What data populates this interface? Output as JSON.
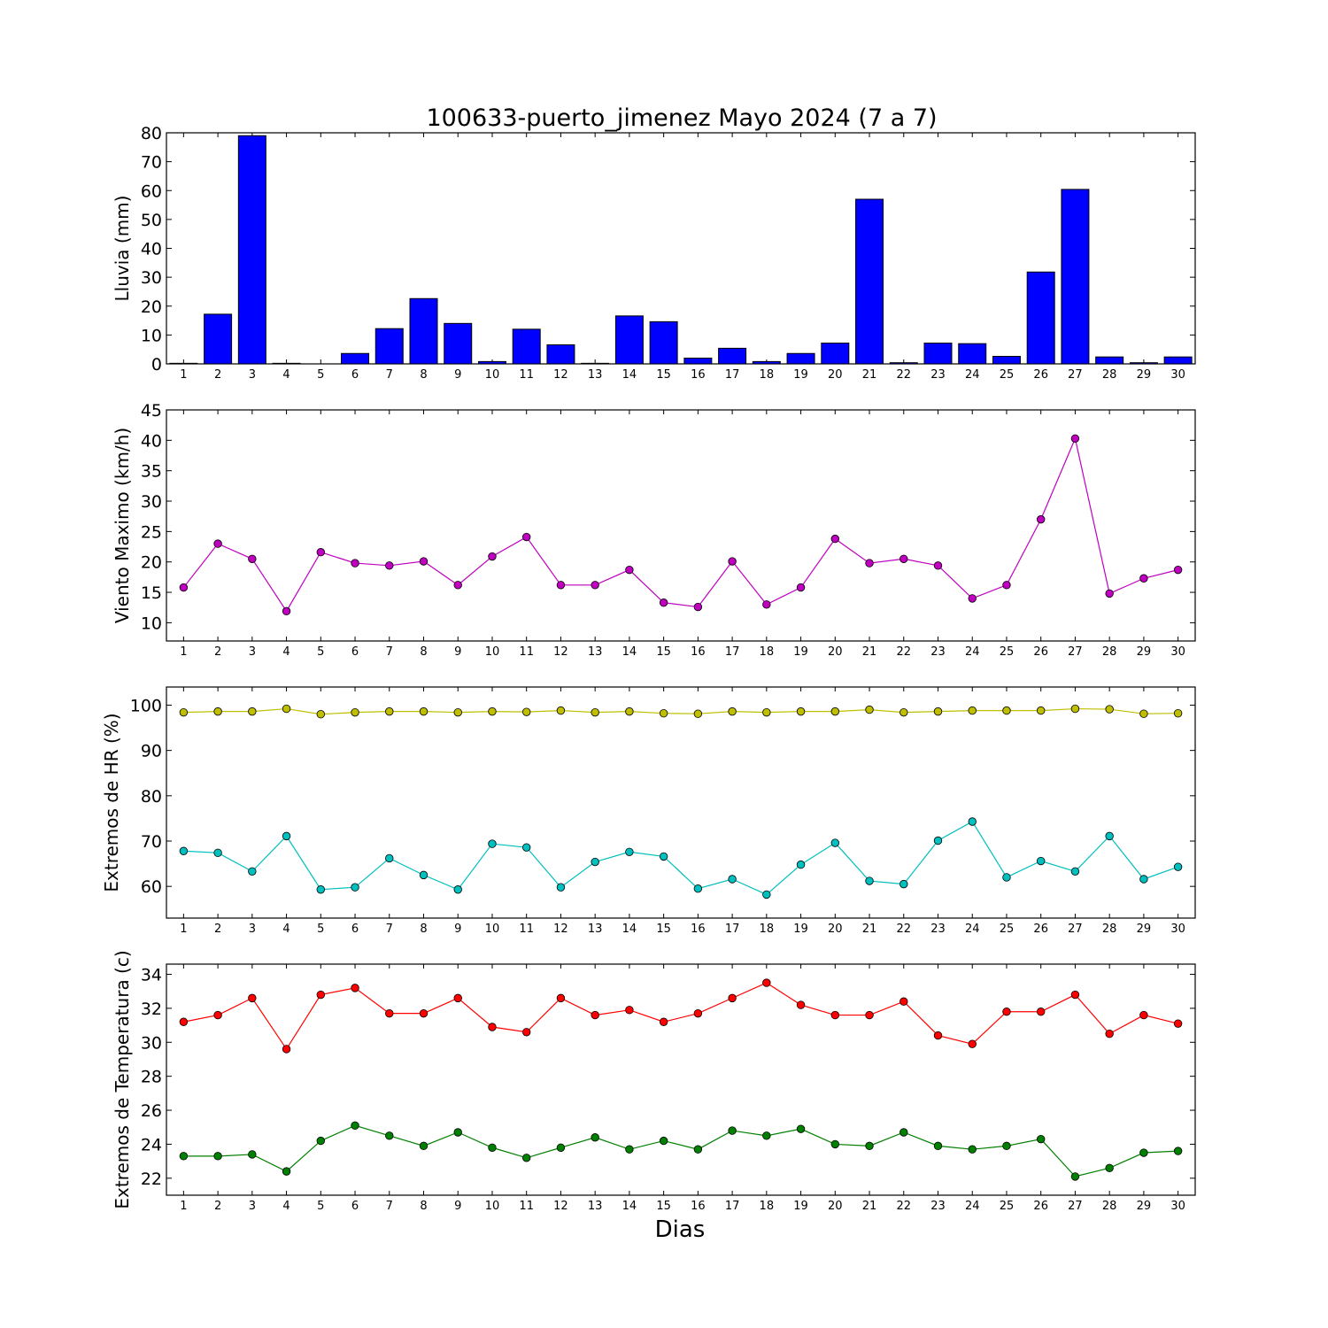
{
  "title": "100633-puerto_jimenez Mayo 2024  (7 a 7)",
  "xlabel": "Dias",
  "chart_data": [
    {
      "id": "rain",
      "type": "bar",
      "ylabel": "Lluvia (mm)",
      "ylim": [
        0,
        80
      ],
      "yticks": [
        0,
        10,
        20,
        30,
        40,
        50,
        60,
        70,
        80
      ],
      "categories": [
        "1",
        "2",
        "3",
        "4",
        "5",
        "6",
        "7",
        "8",
        "9",
        "10",
        "11",
        "12",
        "13",
        "14",
        "15",
        "16",
        "17",
        "18",
        "19",
        "20",
        "21",
        "22",
        "23",
        "24",
        "25",
        "26",
        "27",
        "28",
        "29",
        "30"
      ],
      "series": [
        {
          "color": "#0000ff",
          "values": [
            0.2,
            17.2,
            79.0,
            0.2,
            0.0,
            3.6,
            12.2,
            22.6,
            14.0,
            0.8,
            12.0,
            6.6,
            0.2,
            16.6,
            14.6,
            2.0,
            5.4,
            0.8,
            3.6,
            7.2,
            57.0,
            0.4,
            7.2,
            7.0,
            2.6,
            31.8,
            60.4,
            2.4,
            0.4,
            2.4
          ]
        }
      ]
    },
    {
      "id": "wind",
      "type": "line",
      "ylabel": "Viento Maximo (km/h)",
      "ylim": [
        7,
        45
      ],
      "yticks": [
        10,
        15,
        20,
        25,
        30,
        35,
        40,
        45
      ],
      "categories": [
        "1",
        "2",
        "3",
        "4",
        "5",
        "6",
        "7",
        "8",
        "9",
        "10",
        "11",
        "12",
        "13",
        "14",
        "15",
        "16",
        "17",
        "18",
        "19",
        "20",
        "21",
        "22",
        "23",
        "24",
        "25",
        "26",
        "27",
        "28",
        "29",
        "30"
      ],
      "series": [
        {
          "color": "#bf00bf",
          "values": [
            15.8,
            23.0,
            20.5,
            11.9,
            21.6,
            19.8,
            19.4,
            20.1,
            16.2,
            20.9,
            24.1,
            16.2,
            16.2,
            18.7,
            13.3,
            12.6,
            20.1,
            13.0,
            15.8,
            23.8,
            19.8,
            20.5,
            19.4,
            14.0,
            16.2,
            27.0,
            40.3,
            14.8,
            17.3,
            18.7
          ]
        }
      ]
    },
    {
      "id": "hr",
      "type": "line",
      "ylabel": "Extremos de HR (%)",
      "ylim": [
        53,
        104
      ],
      "yticks": [
        60,
        70,
        80,
        90,
        100
      ],
      "categories": [
        "1",
        "2",
        "3",
        "4",
        "5",
        "6",
        "7",
        "8",
        "9",
        "10",
        "11",
        "12",
        "13",
        "14",
        "15",
        "16",
        "17",
        "18",
        "19",
        "20",
        "21",
        "22",
        "23",
        "24",
        "25",
        "26",
        "27",
        "28",
        "29",
        "30"
      ],
      "series": [
        {
          "color": "#bfbf00",
          "values": [
            98.4,
            98.6,
            98.6,
            99.2,
            98.0,
            98.4,
            98.6,
            98.6,
            98.4,
            98.6,
            98.5,
            98.8,
            98.4,
            98.6,
            98.2,
            98.1,
            98.6,
            98.4,
            98.6,
            98.6,
            99.0,
            98.4,
            98.6,
            98.8,
            98.8,
            98.8,
            99.2,
            99.1,
            98.1,
            98.2
          ]
        },
        {
          "color": "#00bfbf",
          "values": [
            67.8,
            67.4,
            63.3,
            71.1,
            59.3,
            59.8,
            66.2,
            62.5,
            59.3,
            69.4,
            68.6,
            59.8,
            65.4,
            67.6,
            66.6,
            59.5,
            61.6,
            58.2,
            64.8,
            69.6,
            61.2,
            60.5,
            70.1,
            74.3,
            62.0,
            65.6,
            63.3,
            71.1,
            61.6,
            64.3
          ]
        }
      ]
    },
    {
      "id": "temp",
      "type": "line",
      "ylabel": "Extremos de Temperatura (c)",
      "ylim": [
        21,
        34.6
      ],
      "yticks": [
        22,
        24,
        26,
        28,
        30,
        32,
        34
      ],
      "categories": [
        "1",
        "2",
        "3",
        "4",
        "5",
        "6",
        "7",
        "8",
        "9",
        "10",
        "11",
        "12",
        "13",
        "14",
        "15",
        "16",
        "17",
        "18",
        "19",
        "20",
        "21",
        "22",
        "23",
        "24",
        "25",
        "26",
        "27",
        "28",
        "29",
        "30"
      ],
      "series": [
        {
          "color": "#ff0000",
          "values": [
            31.2,
            31.6,
            32.6,
            29.6,
            32.8,
            33.2,
            31.7,
            31.7,
            32.6,
            30.9,
            30.6,
            32.6,
            31.6,
            31.9,
            31.2,
            31.7,
            32.6,
            33.5,
            32.2,
            31.6,
            31.6,
            32.4,
            30.4,
            29.9,
            31.8,
            31.8,
            32.8,
            30.5,
            31.6,
            31.1
          ]
        },
        {
          "color": "#008000",
          "values": [
            23.3,
            23.3,
            23.4,
            22.4,
            24.2,
            25.1,
            24.5,
            23.9,
            24.7,
            23.8,
            23.2,
            23.8,
            24.4,
            23.7,
            24.2,
            23.7,
            24.8,
            24.5,
            24.9,
            24.0,
            23.9,
            24.7,
            23.9,
            23.7,
            23.9,
            24.3,
            22.1,
            22.6,
            23.5,
            23.6
          ]
        }
      ]
    }
  ]
}
